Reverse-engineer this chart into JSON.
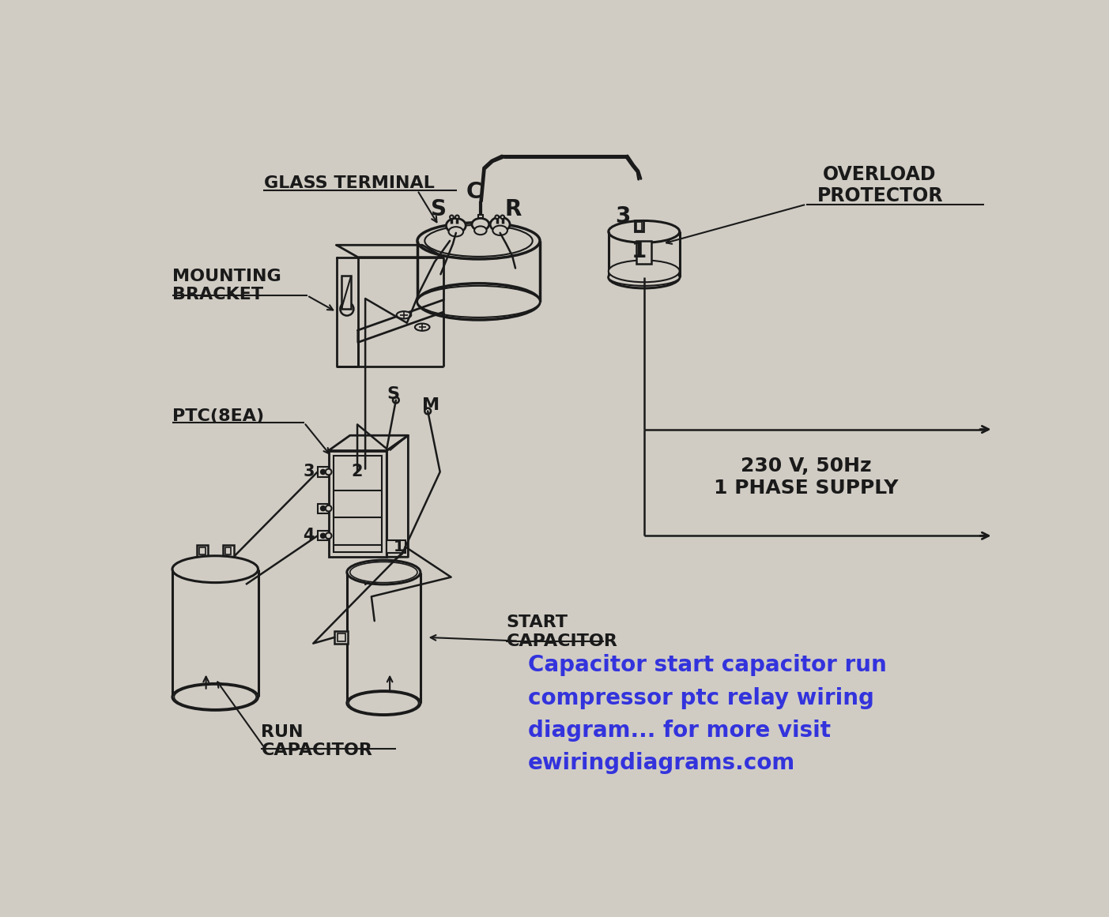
{
  "bg_color": "#d0ccC4",
  "line_color": "#1a1a1a",
  "text_color": "#1a1a1a",
  "blue_text_color": "#3333dd",
  "title_text": "Capacitor start capacitor run\ncompressor ptc relay wiring\ndiagram... for more visit\newiringdiagrams.com",
  "label_glass_terminal": "GLASS TERMINAL",
  "label_mounting_bracket": "MOUNTING\nBRACKET",
  "label_ptc": "PTC(8EA)",
  "label_overload": "OVERLOAD\nPROTECTOR",
  "label_supply": "230 V, 50Hz\n1 PHASE SUPPLY",
  "label_start_cap": "START\nCAPACITOR",
  "label_run_cap": "RUN\nCAPACITOR",
  "label_S_top": "S",
  "label_C": "C",
  "label_R": "R",
  "label_3_top": "3",
  "label_1_op": "1",
  "label_S_mid": "S",
  "label_M": "M",
  "label_2": "2",
  "label_3_mid": "3",
  "label_4": "4",
  "label_1_bot": "1"
}
